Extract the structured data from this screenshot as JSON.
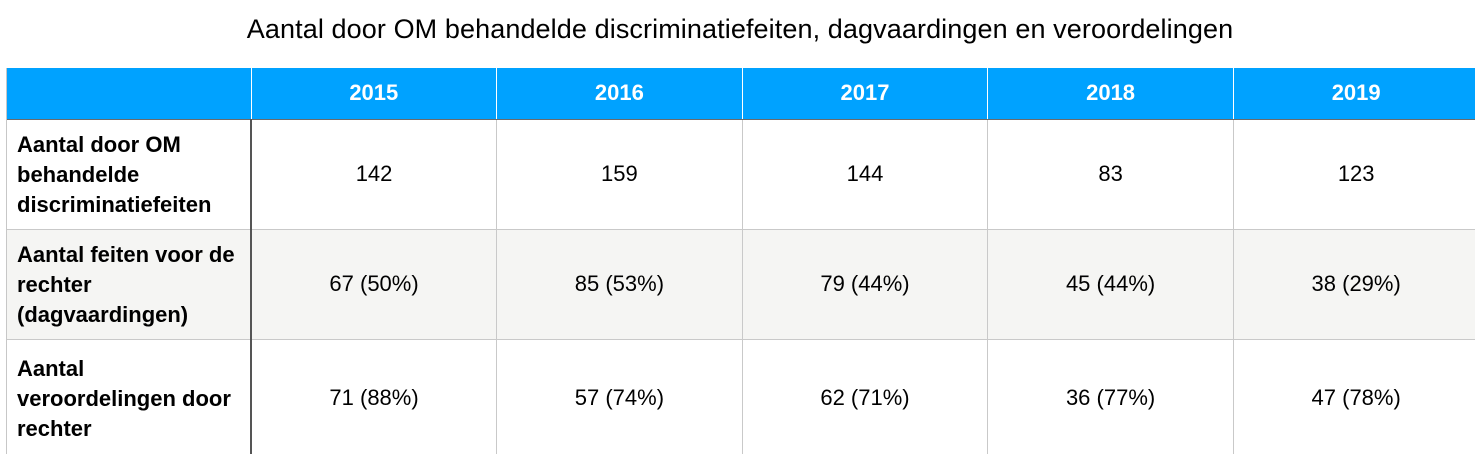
{
  "chart_data": {
    "type": "table",
    "title": "Aantal door OM behandelde discriminatiefeiten, dagvaardingen en veroordelingen",
    "columns": [
      "",
      "2015",
      "2016",
      "2017",
      "2018",
      "2019"
    ],
    "rows": [
      {
        "label": "Aantal door OM behandelde discriminatiefeiten",
        "cells": [
          "142",
          "159",
          "144",
          "83",
          "123"
        ]
      },
      {
        "label": "Aantal feiten voor de rechter (dagvaardingen)",
        "cells": [
          "67 (50%)",
          "85 (53%)",
          "79 (44%)",
          "45 (44%)",
          "38 (29%)"
        ]
      },
      {
        "label": "Aantal veroordelingen door rechter",
        "cells": [
          "71 (88%)",
          "57 (74%)",
          "62 (71%)",
          "36 (77%)",
          "47 (78%)"
        ]
      }
    ]
  },
  "colors": {
    "header_bg": "#00a2ff",
    "header_text": "#ffffff",
    "alt_row_bg": "#f5f5f3"
  }
}
